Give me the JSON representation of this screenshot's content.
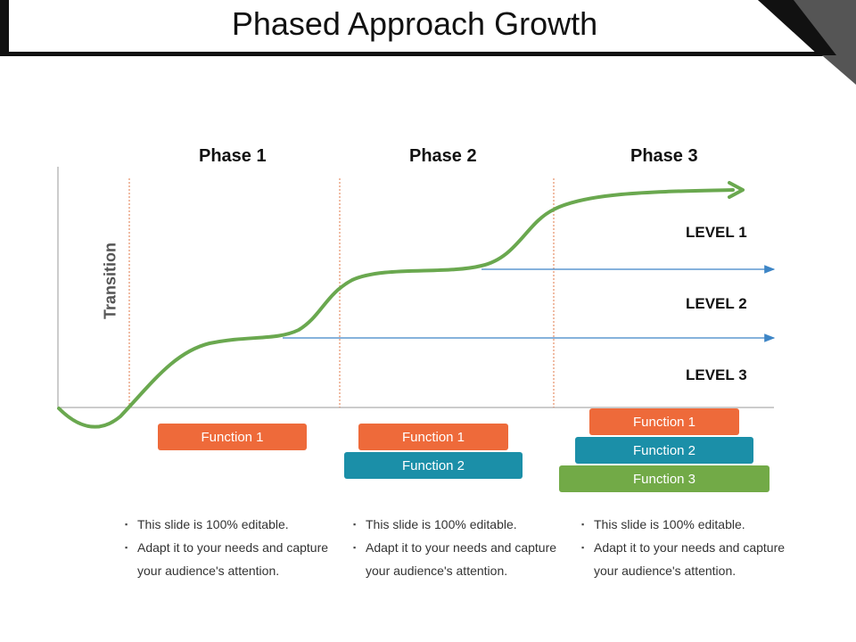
{
  "title": "Phased Approach Growth",
  "axis_label": "Transition",
  "phases": [
    "Phase 1",
    "Phase 2",
    "Phase 3"
  ],
  "levels": [
    "LEVEL 1",
    "LEVEL 2",
    "LEVEL 3"
  ],
  "functions": {
    "phase1": [
      "Function 1"
    ],
    "phase2": [
      "Function 1",
      "Function 2"
    ],
    "phase3": [
      "Function 1",
      "Function 2",
      "Function 3"
    ]
  },
  "bullets": [
    [
      "This slide is 100% editable.",
      "Adapt it to your needs and capture your audience's attention."
    ],
    [
      "This slide is 100% editable.",
      "Adapt it to your needs and capture your audience's attention."
    ],
    [
      "This slide is 100% editable.",
      "Adapt it to your needs and capture your audience's attention."
    ]
  ],
  "colors": {
    "curve": "#6aa84f",
    "arrow_lines": "#3d85c6",
    "divider": "#e07a4a",
    "function_1": "#ee6a3a",
    "function_2": "#1b8fa8",
    "function_3": "#72aa47"
  }
}
